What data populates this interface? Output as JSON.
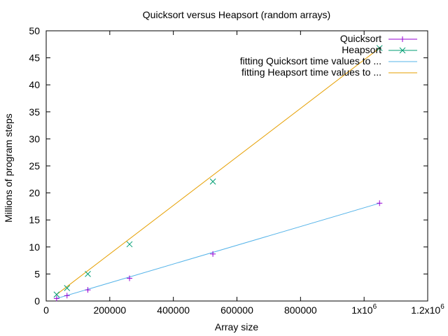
{
  "chart_data": {
    "type": "line",
    "title": "Quicksort versus Heapsort (random arrays)",
    "xlabel": "Array size",
    "ylabel": "Millions of program steps",
    "xlim": [
      0,
      1200000
    ],
    "ylim": [
      0,
      50
    ],
    "x_ticks": [
      {
        "value": 0,
        "label": "0"
      },
      {
        "value": 200000,
        "label": "200000"
      },
      {
        "value": 400000,
        "label": "400000"
      },
      {
        "value": 600000,
        "label": "600000"
      },
      {
        "value": 800000,
        "label": "800000"
      },
      {
        "value": 1000000,
        "label": "1x10",
        "exp": "6"
      },
      {
        "value": 1200000,
        "label": "1.2x10",
        "exp": "6"
      }
    ],
    "y_ticks": [
      0,
      5,
      10,
      15,
      20,
      25,
      30,
      35,
      40,
      45,
      50
    ],
    "grid": false,
    "legend_position": "top-right",
    "series": [
      {
        "name": "Quicksort",
        "kind": "points",
        "marker": "plus",
        "color": "#9400d3",
        "x": [
          32768,
          65536,
          131072,
          262144,
          524288,
          1048576
        ],
        "y": [
          0.47,
          1.0,
          2.05,
          4.2,
          8.7,
          18.1
        ]
      },
      {
        "name": "Heapsort",
        "kind": "points",
        "marker": "cross",
        "color": "#009e73",
        "x": [
          32768,
          65536,
          131072,
          262144,
          524288,
          1048576
        ],
        "y": [
          1.2,
          2.4,
          5.0,
          10.5,
          22.1,
          46.8
        ]
      },
      {
        "name": "fitting Quicksort time values to ...",
        "kind": "line",
        "color": "#56b4e9",
        "x": [
          32768,
          1048576
        ],
        "y": [
          0.47,
          18.1
        ]
      },
      {
        "name": "fitting Heapsort time values to ...",
        "kind": "line",
        "color": "#e69f00",
        "x": [
          32768,
          1048576
        ],
        "y": [
          1.2,
          46.8
        ]
      }
    ]
  }
}
